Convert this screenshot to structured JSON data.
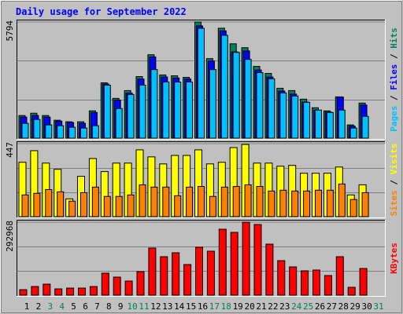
{
  "title": "Daily usage for September 2022",
  "legend_separator": "/",
  "weekend_indices": [
    2,
    3,
    9,
    10,
    16,
    17,
    23,
    24,
    30
  ],
  "weekend_color": "#00805c",
  "chart_data": [
    {
      "type": "bar",
      "ylim": [
        0,
        5794
      ],
      "yticks": [
        5794
      ],
      "series": [
        {
          "name": "Hits",
          "color": "#00805c",
          "values": [
            1128,
            1244,
            1128,
            894,
            817,
            817,
            1361,
            2761,
            1983,
            2372,
            3072,
            4161,
            3150,
            3111,
            3033,
            5794,
            3966,
            5483,
            4705,
            4511,
            3578,
            3228,
            2489,
            2372,
            1944,
            1517,
            1361,
            2061,
            661,
            1750,
            null
          ]
        },
        {
          "name": "Files",
          "color": "#0000ff",
          "values": [
            1050,
            1130,
            1050,
            850,
            780,
            740,
            1280,
            2700,
            1900,
            2250,
            2950,
            4050,
            3050,
            3000,
            2950,
            5600,
            3850,
            5350,
            4300,
            4350,
            3400,
            3050,
            2350,
            2200,
            1800,
            1400,
            1300,
            2050,
            600,
            1650,
            null
          ]
        },
        {
          "name": "Pages",
          "color": "#00c0ff",
          "values": [
            738,
            933,
            661,
            622,
            544,
            505,
            622,
            2644,
            1478,
            2178,
            2644,
            3420,
            2800,
            2800,
            2800,
            5480,
            3420,
            5130,
            4277,
            3926,
            3267,
            2955,
            2255,
            2100,
            1789,
            1400,
            1283,
            1400,
            505,
            1089,
            null
          ]
        }
      ]
    },
    {
      "type": "bar",
      "ylim": [
        0,
        447
      ],
      "yticks": [
        447
      ],
      "series": [
        {
          "name": "Visits",
          "color": "#ffff00",
          "values": [
            333,
            404,
            328,
            290,
            109,
            247,
            356,
            276,
            328,
            328,
            409,
            366,
            323,
            375,
            375,
            409,
            323,
            333,
            423,
            442,
            328,
            328,
            309,
            314,
            266,
            266,
            266,
            304,
            133,
            195,
            null
          ]
        },
        {
          "name": "Sites",
          "color": "#ff8000",
          "values": [
            133,
            143,
            166,
            152,
            95,
            147,
            181,
            124,
            124,
            133,
            195,
            181,
            181,
            128,
            181,
            185,
            124,
            181,
            185,
            195,
            185,
            157,
            162,
            157,
            157,
            162,
            162,
            200,
            105,
            147,
            null
          ]
        }
      ]
    },
    {
      "type": "bar",
      "ylim": [
        0,
        292968
      ],
      "yticks": [
        292968
      ],
      "categories": [
        "1",
        "2",
        "3",
        "4",
        "5",
        "6",
        "7",
        "8",
        "9",
        "10",
        "11",
        "12",
        "13",
        "14",
        "15",
        "16",
        "17",
        "18",
        "19",
        "20",
        "21",
        "22",
        "23",
        "24",
        "25",
        "26",
        "27",
        "28",
        "29",
        "30",
        "31"
      ],
      "series": [
        {
          "name": "KBytes",
          "color": "#ff0000",
          "values": [
            22050,
            34650,
            44100,
            25200,
            28350,
            28350,
            34650,
            88200,
            72450,
            56700,
            94500,
            189000,
            154350,
            170100,
            122850,
            192150,
            176400,
            264600,
            252000,
            292968,
            283500,
            204750,
            138600,
            113400,
            97650,
            100800,
            78750,
            154350,
            31500,
            107100,
            null
          ]
        }
      ]
    }
  ]
}
